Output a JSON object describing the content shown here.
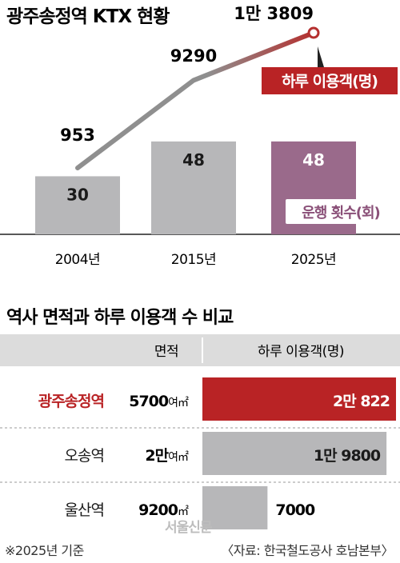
{
  "colors": {
    "bar_gray": "#b7b7b9",
    "bar_highlight": "#9a6a8b",
    "line_gray": "#8f8f8f",
    "line_red": "#b5302f",
    "label_red": "#b92325",
    "count_label": "#8a5078",
    "table_header_bg": "#dcdcdc"
  },
  "chart_data": [
    {
      "type": "bar",
      "title": "광주송정역 KTX 현황",
      "categories": [
        "2004년",
        "2015년",
        "2025년"
      ],
      "series": [
        {
          "name": "운행 횟수(회)",
          "values": [
            30,
            48,
            48
          ],
          "value_labels": [
            "30",
            "48",
            "48"
          ]
        },
        {
          "name": "하루 이용객(명)",
          "type": "line",
          "values": [
            953,
            9290,
            13809
          ],
          "value_labels": [
            "953",
            "9290",
            "1만 3809"
          ]
        }
      ],
      "legend": {
        "ridership": "하루 이용객(명)",
        "runs": "운행 횟수(회)"
      },
      "grid": false
    },
    {
      "type": "bar",
      "title": "역사 면적과 하루 이용객 수 비교",
      "columns": {
        "area": "면적",
        "ridership": "하루 이용객(명)"
      },
      "categories": [
        "광주송정역",
        "오송역",
        "울산역"
      ],
      "series": [
        {
          "name": "하루 이용객(명)",
          "values": [
            20822,
            19800,
            7000
          ],
          "value_labels": [
            "2만 822",
            "1만 9800",
            "7000"
          ]
        }
      ],
      "area": [
        {
          "num": "5700",
          "unit": "여㎡",
          "value": 5700
        },
        {
          "num": "2만",
          "unit": "여㎡",
          "value": 20000
        },
        {
          "num": "9200",
          "unit": "㎡",
          "value": 9200
        }
      ],
      "highlight": "광주송정역"
    }
  ],
  "footnote": "※2025년 기준",
  "source": "〈자료: 한국철도공사 호남본부〉",
  "watermark": "서울신문"
}
